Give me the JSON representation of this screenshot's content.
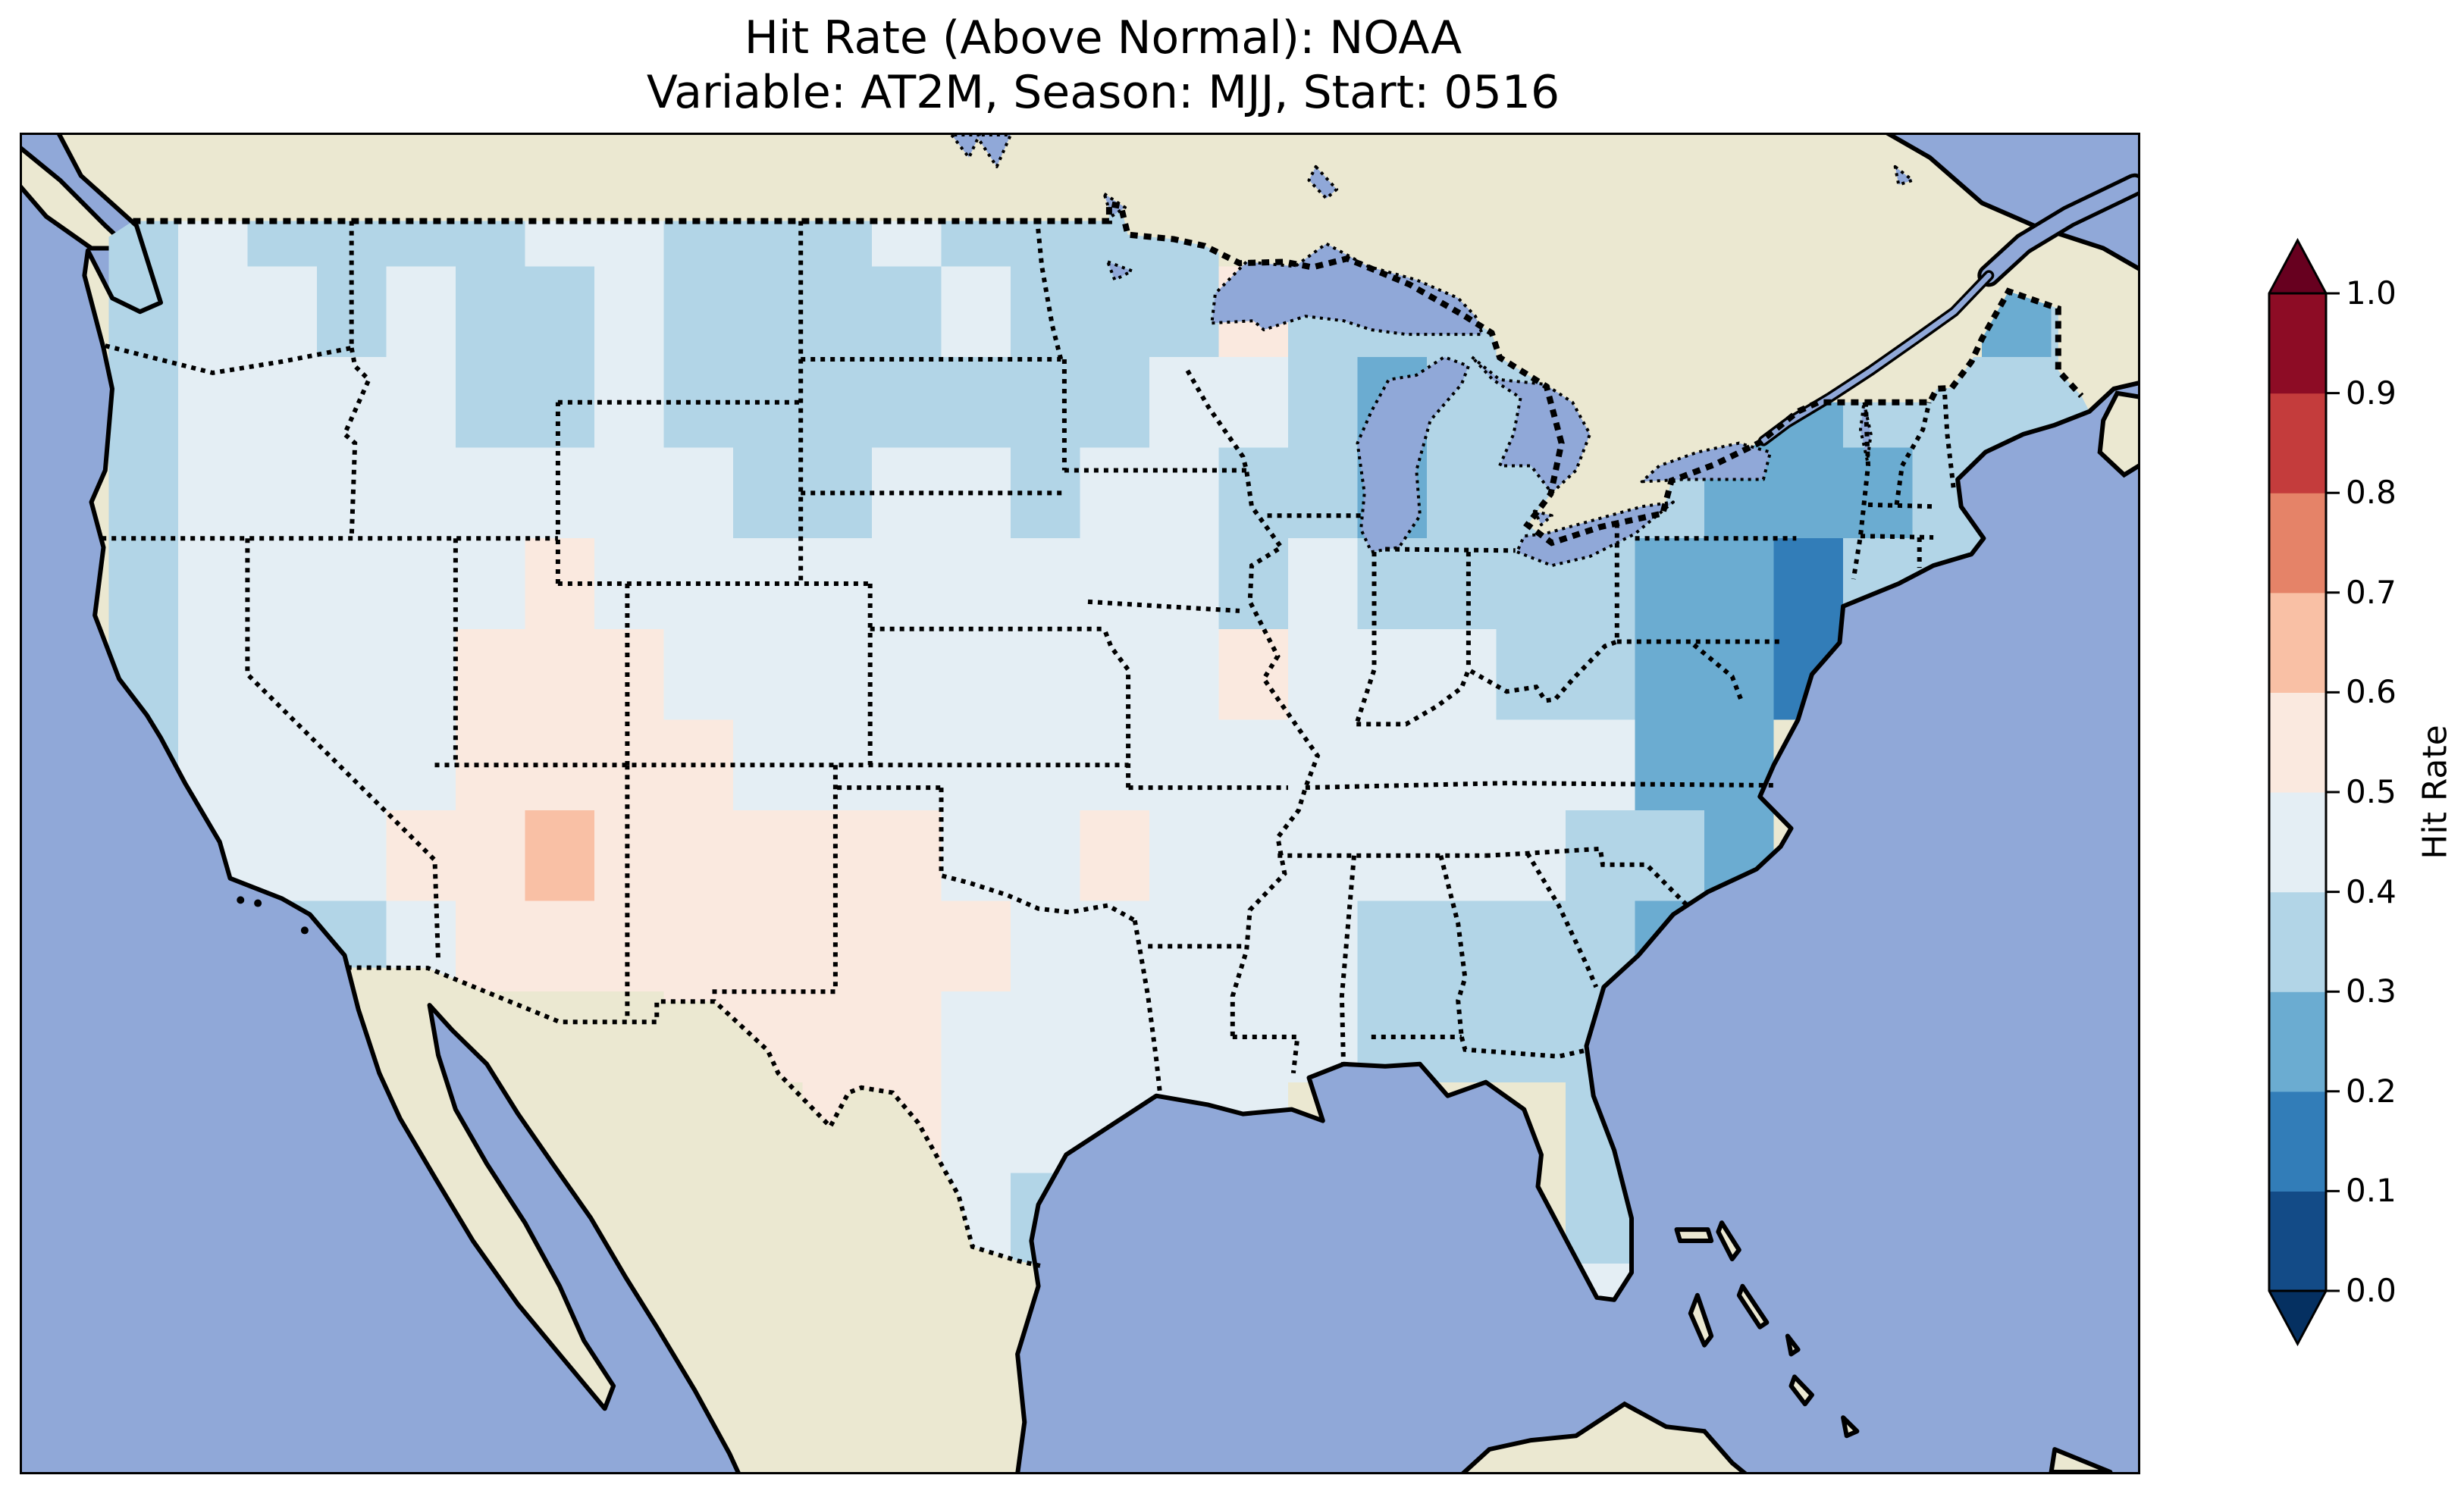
{
  "figure": {
    "title_line1": "Hit Rate (Above Normal): NOAA",
    "title_line2": "Variable: AT2M, Season: MJJ, Start: 0516"
  },
  "colorbar": {
    "label": "Hit Rate",
    "ticks": [
      "1.0",
      "0.9",
      "0.8",
      "0.7",
      "0.6",
      "0.5",
      "0.4",
      "0.3",
      "0.2",
      "0.1",
      "0.0"
    ],
    "tick_values": [
      1.0,
      0.9,
      0.8,
      0.7,
      0.6,
      0.5,
      0.4,
      0.3,
      0.2,
      0.1,
      0.0
    ],
    "extend": "both",
    "colormap": "RdBu_r",
    "stops": [
      "#053061",
      "#2166ac",
      "#4393c3",
      "#92c5de",
      "#d1e5f0",
      "#f7f7f7",
      "#fddbc7",
      "#f4a582",
      "#d6604d",
      "#b2182b",
      "#67001f"
    ]
  },
  "map": {
    "ocean_color": "#90a8d8",
    "land_color": "#ebe8d1",
    "coastline_color": "#000000",
    "border_color": "#000000",
    "extent": {
      "lon_min": -126.5,
      "lon_max": -65.5,
      "lat_min": 21.4,
      "lat_max": 50.9
    }
  },
  "chart_data": {
    "type": "heatmap",
    "title": "Hit Rate (Above Normal): NOAA",
    "subtitle": "Variable: AT2M, Season: MJJ, Start: 0516",
    "source": "NOAA",
    "variable": "AT2M",
    "season": "MJJ",
    "start": "0516",
    "colorbar_label": "Hit Rate",
    "value_range": [
      0.0,
      1.0
    ],
    "bin_size": 0.1,
    "legend_position": "right",
    "region": "Contiguous United States",
    "grid": {
      "comment": "Hit-rate values (bin centers) on a lon/lat grid over the US; null = outside data region",
      "lon_west_origin": -126,
      "lat_north_origin": 50,
      "cell_deg": 2,
      "n_cols": 30,
      "n_rows": 13,
      "values": [
        [
          null,
          0.35,
          0.45,
          0.35,
          0.35,
          0.35,
          0.35,
          0.45,
          0.45,
          0.35,
          0.35,
          0.35,
          0.45,
          0.35,
          0.35,
          0.35,
          0.35,
          null,
          null,
          null,
          null,
          null,
          null,
          null,
          null,
          null,
          null,
          null,
          null,
          null
        ],
        [
          null,
          0.35,
          0.45,
          0.45,
          0.35,
          0.45,
          0.35,
          0.35,
          0.45,
          0.35,
          0.35,
          0.35,
          0.35,
          0.45,
          0.35,
          0.35,
          0.35,
          0.55,
          0.35,
          0.35,
          0.35,
          null,
          null,
          null,
          null,
          null,
          null,
          null,
          0.25,
          0.35
        ],
        [
          null,
          0.35,
          0.45,
          0.45,
          0.45,
          0.45,
          0.35,
          0.35,
          0.45,
          0.35,
          0.35,
          0.35,
          0.35,
          0.35,
          0.35,
          0.35,
          0.45,
          0.45,
          0.35,
          0.25,
          0.35,
          0.35,
          null,
          null,
          0.25,
          0.25,
          0.35,
          0.35,
          0.35,
          0.35
        ],
        [
          null,
          0.35,
          0.45,
          0.45,
          0.45,
          0.45,
          0.45,
          0.45,
          0.45,
          0.45,
          0.35,
          0.35,
          0.45,
          0.45,
          0.35,
          0.45,
          0.45,
          0.35,
          0.35,
          0.25,
          0.35,
          0.35,
          0.35,
          0.35,
          0.25,
          0.25,
          0.25,
          0.35,
          0.35,
          null
        ],
        [
          null,
          0.35,
          0.45,
          0.45,
          0.45,
          0.45,
          0.45,
          0.55,
          0.45,
          0.45,
          0.45,
          0.45,
          0.45,
          0.45,
          0.45,
          0.45,
          0.45,
          0.35,
          0.45,
          0.35,
          0.35,
          0.35,
          0.35,
          0.25,
          0.25,
          0.15,
          0.35,
          0.35,
          0.45,
          null
        ],
        [
          null,
          0.35,
          0.45,
          0.45,
          0.45,
          0.45,
          0.55,
          0.55,
          0.55,
          0.45,
          0.45,
          0.45,
          0.45,
          0.45,
          0.45,
          0.45,
          0.45,
          0.55,
          0.45,
          0.45,
          0.45,
          0.35,
          0.35,
          0.25,
          0.25,
          0.15,
          null,
          null,
          null,
          null
        ],
        [
          null,
          0.35,
          0.45,
          0.45,
          0.45,
          0.45,
          0.55,
          0.55,
          0.55,
          0.55,
          0.45,
          0.45,
          0.45,
          0.45,
          0.45,
          0.45,
          0.45,
          0.45,
          0.45,
          0.45,
          0.45,
          0.45,
          0.45,
          0.25,
          0.25,
          null,
          null,
          null,
          null,
          null
        ],
        [
          null,
          0.35,
          0.45,
          0.45,
          0.45,
          0.55,
          0.55,
          0.65,
          0.55,
          0.55,
          0.55,
          0.55,
          0.55,
          0.45,
          0.45,
          0.55,
          0.45,
          0.45,
          0.45,
          0.45,
          0.45,
          0.45,
          0.35,
          0.35,
          0.25,
          null,
          null,
          null,
          null,
          null
        ],
        [
          null,
          null,
          0.35,
          0.35,
          0.35,
          0.45,
          0.55,
          0.55,
          0.55,
          0.55,
          0.55,
          0.55,
          0.55,
          0.55,
          0.45,
          0.45,
          0.45,
          0.45,
          0.45,
          0.35,
          0.35,
          0.35,
          0.35,
          0.25,
          null,
          null,
          null,
          null,
          null,
          null
        ],
        [
          null,
          null,
          null,
          null,
          null,
          null,
          null,
          null,
          null,
          0.55,
          0.55,
          0.55,
          0.55,
          0.45,
          0.45,
          0.45,
          0.45,
          0.45,
          0.45,
          0.35,
          0.35,
          0.35,
          0.35,
          0.35,
          null,
          null,
          null,
          null,
          null,
          null
        ],
        [
          null,
          null,
          null,
          null,
          null,
          null,
          null,
          null,
          null,
          null,
          null,
          0.55,
          0.55,
          0.45,
          0.45,
          0.45,
          0.45,
          0.45,
          null,
          null,
          null,
          null,
          0.35,
          0.35,
          null,
          null,
          null,
          null,
          null,
          null
        ],
        [
          null,
          null,
          null,
          null,
          null,
          null,
          null,
          null,
          null,
          null,
          null,
          null,
          0.45,
          0.45,
          0.35,
          null,
          null,
          null,
          null,
          null,
          null,
          null,
          0.35,
          0.35,
          null,
          null,
          null,
          null,
          null,
          null
        ],
        [
          null,
          null,
          null,
          null,
          null,
          null,
          null,
          null,
          null,
          null,
          null,
          null,
          null,
          0.35,
          null,
          null,
          null,
          null,
          null,
          null,
          null,
          0.45,
          0.45,
          0.35,
          null,
          null,
          null,
          null,
          null,
          null
        ]
      ]
    }
  }
}
